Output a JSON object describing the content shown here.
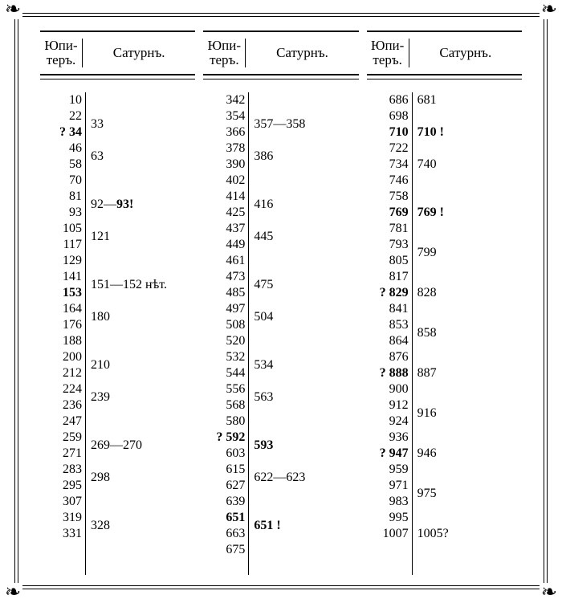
{
  "headers": {
    "jupiter_line1": "Юпи-",
    "jupiter_line2": "теръ.",
    "saturn": "Сатурнъ."
  },
  "columns": [
    {
      "jupiter": [
        {
          "v": "10"
        },
        {
          "v": "22"
        },
        {
          "v": "? 34",
          "bold": true
        },
        {
          "v": "46"
        },
        {
          "v": "58"
        },
        {
          "v": "70"
        },
        {
          "v": "81"
        },
        {
          "v": "93"
        },
        {
          "v": "105"
        },
        {
          "v": "117"
        },
        {
          "v": "129"
        },
        {
          "v": "141"
        },
        {
          "v": "153",
          "bold": true
        },
        {
          "v": "164"
        },
        {
          "v": "176"
        },
        {
          "v": "188"
        },
        {
          "v": "200"
        },
        {
          "v": "212"
        },
        {
          "v": "224"
        },
        {
          "v": "236"
        },
        {
          "v": "247"
        },
        {
          "v": "259"
        },
        {
          "v": "271"
        },
        {
          "v": "283"
        },
        {
          "v": "295"
        },
        {
          "v": "307"
        },
        {
          "v": "319"
        },
        {
          "v": "331"
        }
      ],
      "saturn": [
        {
          "v": "",
          "single": true
        },
        {
          "v": "33"
        },
        {
          "v": "63"
        },
        {
          "v": "",
          "single": true
        },
        {
          "v": "92—93!",
          "boldTail": "93!"
        },
        {
          "v": "121"
        },
        {
          "v": "",
          "single": true
        },
        {
          "v": "151—152 нѣт."
        },
        {
          "v": "180"
        },
        {
          "v": "",
          "single": true
        },
        {
          "v": "210"
        },
        {
          "v": "239"
        },
        {
          "v": "",
          "single": true
        },
        {
          "v": "269—270"
        },
        {
          "v": "298"
        },
        {
          "v": "",
          "single": true
        },
        {
          "v": "328"
        }
      ]
    },
    {
      "jupiter": [
        {
          "v": "342"
        },
        {
          "v": "354"
        },
        {
          "v": "366"
        },
        {
          "v": "378"
        },
        {
          "v": "390"
        },
        {
          "v": "402"
        },
        {
          "v": "414"
        },
        {
          "v": "425"
        },
        {
          "v": "437"
        },
        {
          "v": "449"
        },
        {
          "v": "461"
        },
        {
          "v": "473"
        },
        {
          "v": "485"
        },
        {
          "v": "497"
        },
        {
          "v": "508"
        },
        {
          "v": "520"
        },
        {
          "v": "532"
        },
        {
          "v": "544"
        },
        {
          "v": "556"
        },
        {
          "v": "568"
        },
        {
          "v": "580"
        },
        {
          "v": "? 592",
          "bold": true
        },
        {
          "v": "603"
        },
        {
          "v": "615"
        },
        {
          "v": "627"
        },
        {
          "v": "639"
        },
        {
          "v": "651",
          "bold": true
        },
        {
          "v": "663"
        },
        {
          "v": "675"
        }
      ],
      "saturn": [
        {
          "v": "",
          "single": true
        },
        {
          "v": "357—358"
        },
        {
          "v": "386"
        },
        {
          "v": "",
          "single": true
        },
        {
          "v": "416"
        },
        {
          "v": "445"
        },
        {
          "v": "",
          "single": true
        },
        {
          "v": "475"
        },
        {
          "v": "504"
        },
        {
          "v": "",
          "single": true
        },
        {
          "v": "534"
        },
        {
          "v": "563"
        },
        {
          "v": "",
          "single": true
        },
        {
          "v": "593",
          "bold": true
        },
        {
          "v": "622—623"
        },
        {
          "v": "",
          "single": true
        },
        {
          "v": "651 !",
          "bold": true
        },
        {
          "v": "",
          "single": true
        },
        {
          "v": "",
          "single": true
        }
      ]
    },
    {
      "jupiter": [
        {
          "v": "686"
        },
        {
          "v": "698"
        },
        {
          "v": "710",
          "bold": true
        },
        {
          "v": "722"
        },
        {
          "v": "734"
        },
        {
          "v": "746"
        },
        {
          "v": "758"
        },
        {
          "v": "769",
          "bold": true
        },
        {
          "v": "781"
        },
        {
          "v": "793"
        },
        {
          "v": "805"
        },
        {
          "v": "817"
        },
        {
          "v": "? 829",
          "bold": true
        },
        {
          "v": "841"
        },
        {
          "v": "853"
        },
        {
          "v": "864"
        },
        {
          "v": "876"
        },
        {
          "v": "? 888",
          "bold": true
        },
        {
          "v": "900"
        },
        {
          "v": "912"
        },
        {
          "v": "924"
        },
        {
          "v": "936"
        },
        {
          "v": "? 947",
          "bold": true
        },
        {
          "v": "959"
        },
        {
          "v": "971"
        },
        {
          "v": "983"
        },
        {
          "v": "995"
        },
        {
          "v": "1007"
        }
      ],
      "saturn": [
        {
          "v": "681",
          "single": true
        },
        {
          "v": "",
          "single": true
        },
        {
          "v": "710 !",
          "single": true,
          "bold": true
        },
        {
          "v": "",
          "single": true
        },
        {
          "v": "740",
          "single": true
        },
        {
          "v": "",
          "single": true
        },
        {
          "v": "",
          "single": true
        },
        {
          "v": "769 !",
          "single": true,
          "bold": true
        },
        {
          "v": "",
          "single": true
        },
        {
          "v": "799"
        },
        {
          "v": "",
          "single": true
        },
        {
          "v": "828",
          "single": true
        },
        {
          "v": "",
          "single": true
        },
        {
          "v": "858"
        },
        {
          "v": "",
          "single": true
        },
        {
          "v": "887",
          "single": true
        },
        {
          "v": "",
          "single": true
        },
        {
          "v": "916"
        },
        {
          "v": "",
          "single": true
        },
        {
          "v": "946",
          "single": true
        },
        {
          "v": "",
          "single": true
        },
        {
          "v": "975"
        },
        {
          "v": "",
          "single": true
        },
        {
          "v": "1005?",
          "single": true
        }
      ]
    }
  ]
}
